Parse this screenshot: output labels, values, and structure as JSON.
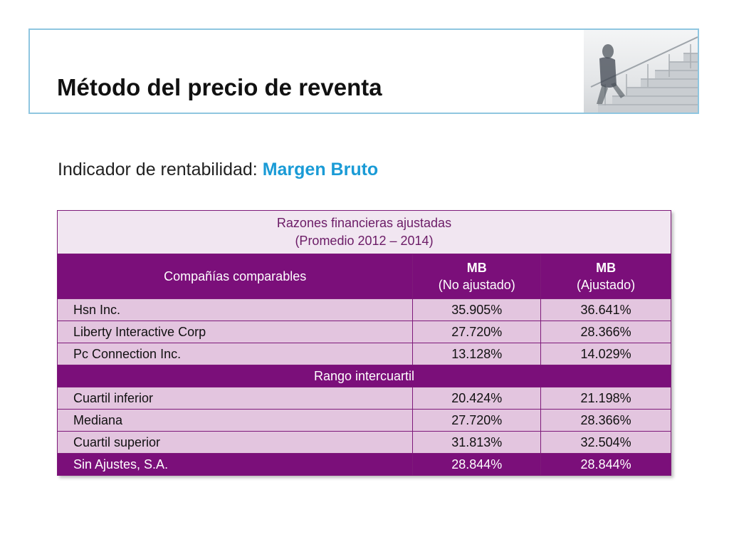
{
  "slide": {
    "title": "Método del precio de reventa",
    "subtitle_prefix": "Indicador de rentabilidad: ",
    "subtitle_highlight": "Margen Bruto"
  },
  "table": {
    "caption_line1": "Razones financieras ajustadas",
    "caption_line2": "(Promedio 2012 – 2014)",
    "col_company": "Compañías comparables",
    "col2_line1": "MB",
    "col2_line2": "(No ajustado)",
    "col3_line1": "MB",
    "col3_line2": "(Ajustado)",
    "companies": [
      {
        "name": "Hsn Inc.",
        "mb_no_ajustado": "35.905%",
        "mb_ajustado": "36.641%"
      },
      {
        "name": "Liberty Interactive Corp",
        "mb_no_ajustado": "27.720%",
        "mb_ajustado": "28.366%"
      },
      {
        "name": "Pc Connection Inc.",
        "mb_no_ajustado": "13.128%",
        "mb_ajustado": "14.029%"
      }
    ],
    "range_label": "Rango intercuartil",
    "quartiles": [
      {
        "name": "Cuartil inferior",
        "mb_no_ajustado": "20.424%",
        "mb_ajustado": "21.198%"
      },
      {
        "name": "Mediana",
        "mb_no_ajustado": "27.720%",
        "mb_ajustado": "28.366%"
      },
      {
        "name": "Cuartil superior",
        "mb_no_ajustado": "31.813%",
        "mb_ajustado": "32.504%"
      }
    ],
    "tested_party": {
      "name": "Sin Ajustes, S.A.",
      "mb_no_ajustado": "28.844%",
      "mb_ajustado": "28.844%"
    }
  },
  "colors": {
    "accent_blue": "#1a9bd6",
    "header_purple": "#7b0f7a",
    "row_lilac": "#e3c5df",
    "caption_bg": "#f1e6f1",
    "frame_blue": "#8fc6e0"
  }
}
